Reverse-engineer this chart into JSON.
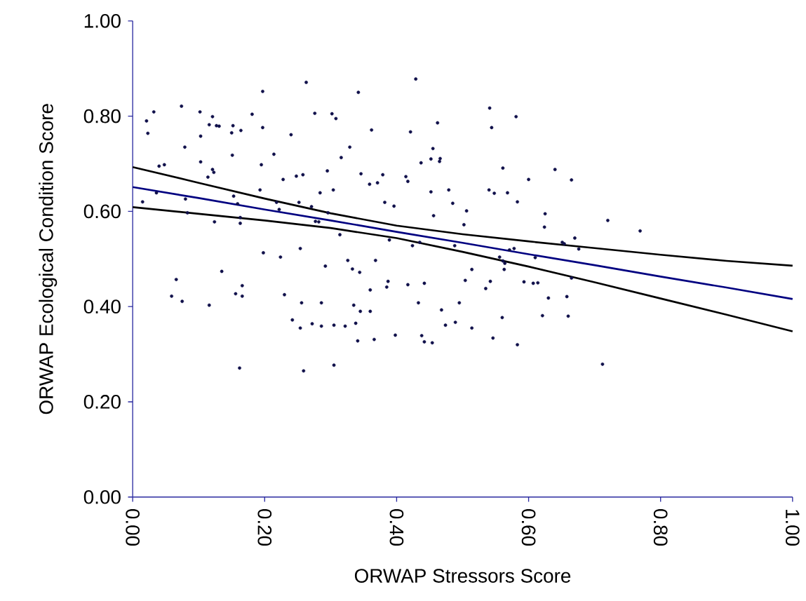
{
  "chart_data": {
    "type": "scatter",
    "xlabel": "ORWAP Stressors Score",
    "ylabel": "ORWAP Ecological Condition Score",
    "xlim": [
      0,
      1
    ],
    "ylim": [
      0,
      1
    ],
    "xticks": [
      {
        "value": 0,
        "label": "0.00"
      },
      {
        "value": 0.2,
        "label": "0.20"
      },
      {
        "value": 0.4,
        "label": "0.40"
      },
      {
        "value": 0.6,
        "label": "0.60"
      },
      {
        "value": 0.8,
        "label": "0.80"
      },
      {
        "value": 1,
        "label": "1.00"
      }
    ],
    "yticks": [
      {
        "value": 0,
        "label": "0.00"
      },
      {
        "value": 0.2,
        "label": "0.20"
      },
      {
        "value": 0.4,
        "label": "0.40"
      },
      {
        "value": 0.6,
        "label": "0.60"
      },
      {
        "value": 0.8,
        "label": "0.80"
      },
      {
        "value": 1,
        "label": "1.00"
      }
    ],
    "grid": false,
    "series": [
      {
        "marker": "circle",
        "color": "#10104a",
        "x": [
          0.015,
          0.021,
          0.023,
          0.032,
          0.036,
          0.04,
          0.048,
          0.059,
          0.066,
          0.074,
          0.075,
          0.079,
          0.08,
          0.083,
          0.102,
          0.103,
          0.103,
          0.114,
          0.116,
          0.116,
          0.121,
          0.121,
          0.123,
          0.124,
          0.127,
          0.131,
          0.135,
          0.15,
          0.152,
          0.151,
          0.153,
          0.159,
          0.156,
          0.162,
          0.164,
          0.163,
          0.163,
          0.166,
          0.166,
          0.181,
          0.193,
          0.195,
          0.197,
          0.197,
          0.198,
          0.214,
          0.218,
          0.222,
          0.224,
          0.228,
          0.23,
          0.24,
          0.242,
          0.248,
          0.252,
          0.254,
          0.256,
          0.254,
          0.259,
          0.263,
          0.258,
          0.271,
          0.272,
          0.277,
          0.276,
          0.282,
          0.284,
          0.286,
          0.286,
          0.292,
          0.295,
          0.296,
          0.302,
          0.304,
          0.305,
          0.305,
          0.308,
          0.314,
          0.316,
          0.322,
          0.326,
          0.329,
          0.333,
          0.335,
          0.338,
          0.341,
          0.344,
          0.342,
          0.346,
          0.345,
          0.359,
          0.36,
          0.36,
          0.362,
          0.366,
          0.368,
          0.371,
          0.379,
          0.382,
          0.385,
          0.387,
          0.389,
          0.396,
          0.398,
          0.414,
          0.417,
          0.417,
          0.421,
          0.424,
          0.429,
          0.433,
          0.435,
          0.437,
          0.438,
          0.442,
          0.442,
          0.452,
          0.452,
          0.456,
          0.454,
          0.455,
          0.462,
          0.465,
          0.466,
          0.468,
          0.474,
          0.479,
          0.485,
          0.489,
          0.488,
          0.495,
          0.502,
          0.506,
          0.504,
          0.514,
          0.514,
          0.535,
          0.541,
          0.544,
          0.54,
          0.542,
          0.546,
          0.548,
          0.556,
          0.561,
          0.564,
          0.56,
          0.561,
          0.563,
          0.568,
          0.571,
          0.581,
          0.578,
          0.583,
          0.583,
          0.593,
          0.6,
          0.607,
          0.61,
          0.614,
          0.621,
          0.624,
          0.625,
          0.63,
          0.64,
          0.651,
          0.654,
          0.658,
          0.66,
          0.665,
          0.665,
          0.67,
          0.676,
          0.712,
          0.72,
          0.769
        ],
        "values": [
          0.62,
          0.79,
          0.764,
          0.809,
          0.639,
          0.695,
          0.698,
          0.422,
          0.457,
          0.821,
          0.411,
          0.735,
          0.626,
          0.597,
          0.809,
          0.758,
          0.704,
          0.672,
          0.782,
          0.403,
          0.799,
          0.688,
          0.682,
          0.578,
          0.78,
          0.779,
          0.474,
          0.765,
          0.78,
          0.718,
          0.632,
          0.616,
          0.427,
          0.271,
          0.77,
          0.587,
          0.575,
          0.422,
          0.444,
          0.804,
          0.645,
          0.698,
          0.852,
          0.776,
          0.513,
          0.72,
          0.619,
          0.604,
          0.504,
          0.667,
          0.425,
          0.761,
          0.372,
          0.674,
          0.619,
          0.522,
          0.408,
          0.355,
          0.265,
          0.871,
          0.677,
          0.61,
          0.364,
          0.579,
          0.806,
          0.578,
          0.639,
          0.408,
          0.359,
          0.485,
          0.685,
          0.597,
          0.805,
          0.645,
          0.361,
          0.277,
          0.795,
          0.551,
          0.713,
          0.359,
          0.497,
          0.735,
          0.479,
          0.403,
          0.365,
          0.328,
          0.472,
          0.85,
          0.679,
          0.39,
          0.657,
          0.435,
          0.39,
          0.771,
          0.331,
          0.497,
          0.66,
          0.677,
          0.619,
          0.441,
          0.453,
          0.54,
          0.611,
          0.34,
          0.673,
          0.663,
          0.446,
          0.767,
          0.528,
          0.878,
          0.408,
          0.535,
          0.702,
          0.339,
          0.326,
          0.449,
          0.641,
          0.71,
          0.591,
          0.324,
          0.732,
          0.786,
          0.705,
          0.711,
          0.393,
          0.361,
          0.645,
          0.617,
          0.367,
          0.528,
          0.408,
          0.572,
          0.601,
          0.455,
          0.478,
          0.355,
          0.438,
          0.817,
          0.776,
          0.645,
          0.453,
          0.334,
          0.638,
          0.504,
          0.496,
          0.491,
          0.377,
          0.691,
          0.478,
          0.639,
          0.519,
          0.799,
          0.522,
          0.32,
          0.62,
          0.452,
          0.667,
          0.449,
          0.503,
          0.45,
          0.381,
          0.567,
          0.595,
          0.418,
          0.688,
          0.535,
          0.532,
          0.421,
          0.38,
          0.666,
          0.46,
          0.544,
          0.521,
          0.279,
          0.581,
          0.559
        ]
      },
      {
        "type": "line",
        "marker": "none",
        "color": "#000080",
        "x": [
          0,
          0.1,
          0.2,
          0.3,
          0.4,
          0.5,
          0.6,
          0.7,
          0.8,
          0.9,
          1
        ],
        "values": [
          0.651,
          0.628,
          0.604,
          0.581,
          0.557,
          0.534,
          0.51,
          0.487,
          0.463,
          0.44,
          0.416
        ]
      },
      {
        "type": "line",
        "marker": "none",
        "color": "#000000",
        "x": [
          0,
          0.1,
          0.2,
          0.3,
          0.4,
          0.5,
          0.6,
          0.7,
          0.8,
          0.9,
          1
        ],
        "values": [
          0.693,
          0.66,
          0.627,
          0.596,
          0.57,
          0.552,
          0.537,
          0.523,
          0.509,
          0.496,
          0.486
        ]
      },
      {
        "type": "line",
        "marker": "none",
        "color": "#000000",
        "x": [
          0,
          0.1,
          0.2,
          0.3,
          0.4,
          0.5,
          0.6,
          0.7,
          0.8,
          0.9,
          1
        ],
        "values": [
          0.609,
          0.595,
          0.581,
          0.565,
          0.544,
          0.515,
          0.484,
          0.451,
          0.417,
          0.383,
          0.348
        ]
      }
    ]
  }
}
